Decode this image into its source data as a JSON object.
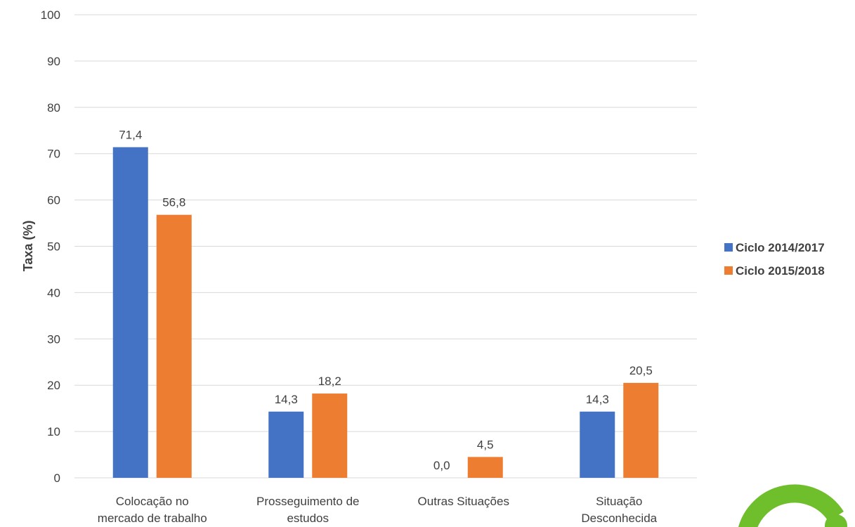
{
  "chart_data": {
    "type": "bar",
    "title": "",
    "xlabel": "",
    "ylabel": "Taxa (%)",
    "ylim": [
      0,
      100
    ],
    "yticks": [
      0,
      10,
      20,
      30,
      40,
      50,
      60,
      70,
      80,
      90,
      100
    ],
    "grid": true,
    "legend_position": "right",
    "categories": [
      [
        "Colocação no",
        "mercado de trabalho"
      ],
      [
        "Prosseguimento de",
        "estudos"
      ],
      [
        "Outras Situações"
      ],
      [
        "Situação",
        "Desconhecida"
      ]
    ],
    "series": [
      {
        "name": "Ciclo 2014/2017",
        "color": "#4472c4",
        "values": [
          71.4,
          14.3,
          0.0,
          14.3
        ],
        "labels": [
          "71,4",
          "14,3",
          "0,0",
          "14,3"
        ]
      },
      {
        "name": "Ciclo 2015/2018",
        "color": "#ed7d31",
        "values": [
          56.8,
          18.2,
          4.5,
          20.5
        ],
        "labels": [
          "56,8",
          "18,2",
          "4,5",
          "20,5"
        ]
      }
    ]
  },
  "logo": {
    "color": "#6fbe2c",
    "icon": "green-arc-logo"
  }
}
